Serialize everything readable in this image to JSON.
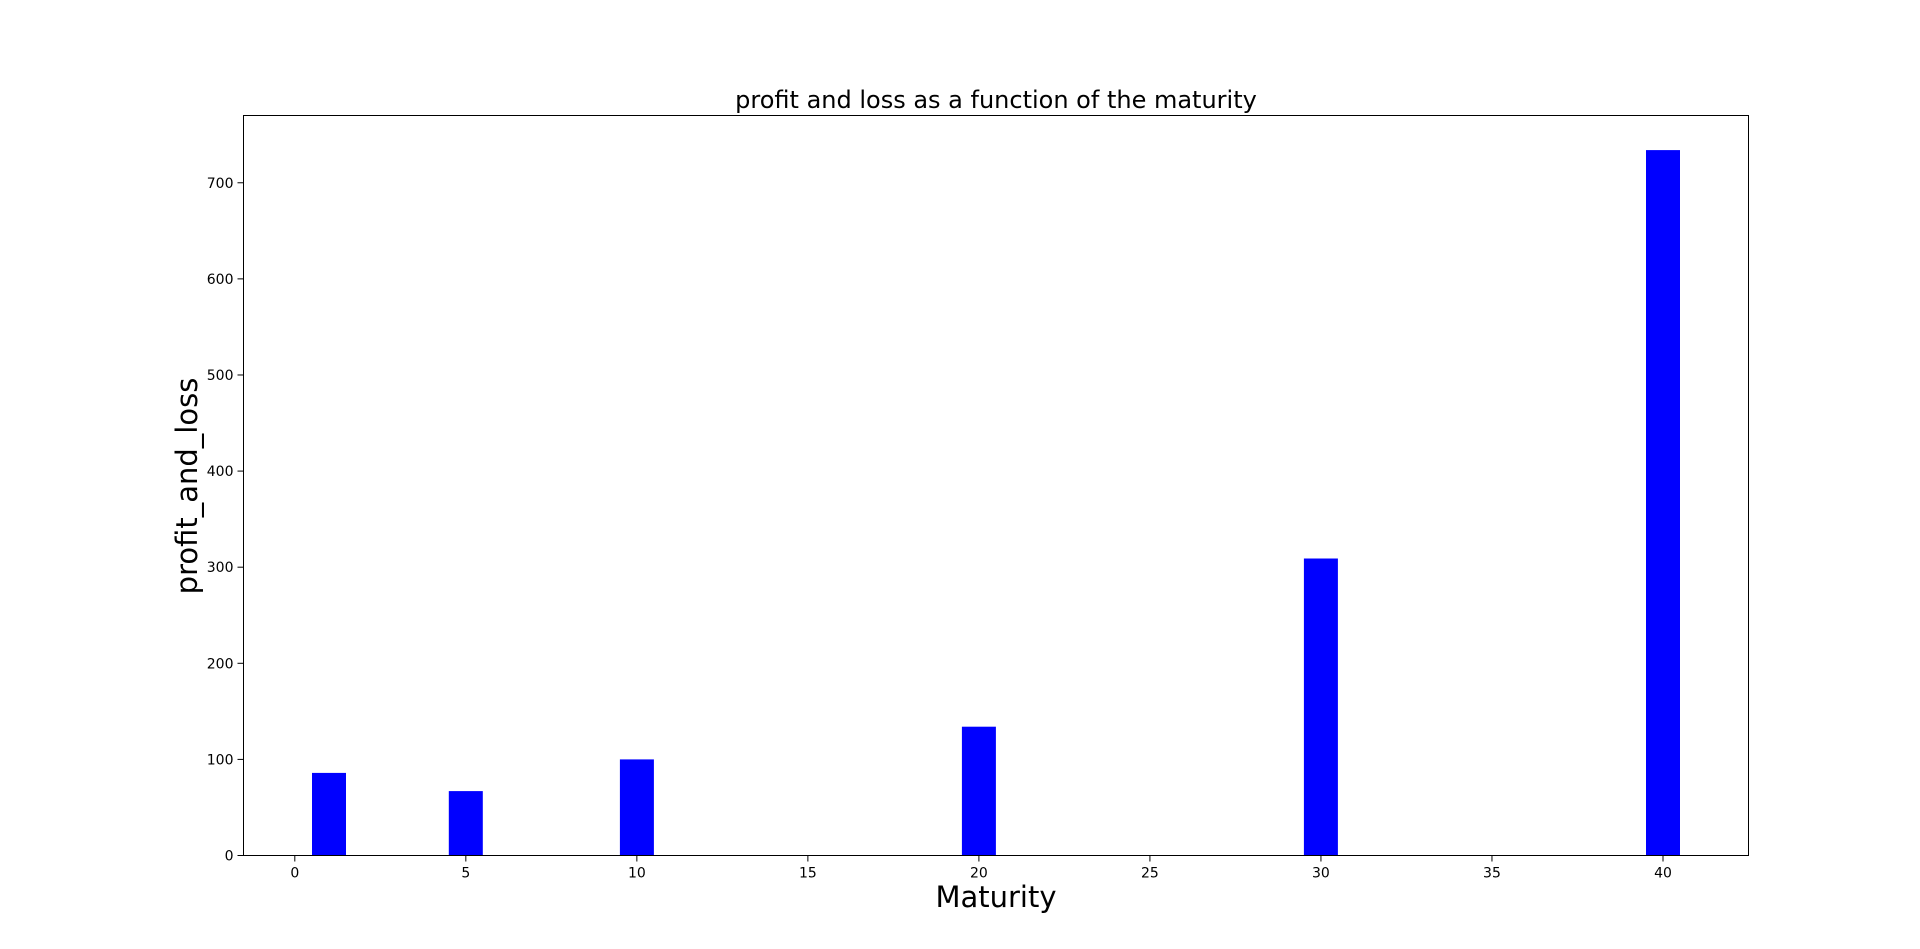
{
  "chart_data": {
    "type": "bar",
    "title": "profit and loss as a function of the maturity",
    "xlabel": "Maturity",
    "ylabel": "profit_and_loss",
    "x": [
      1,
      5,
      10,
      20,
      30,
      40
    ],
    "values": [
      86,
      67,
      100,
      134,
      309,
      734
    ],
    "bar_color": "#0000ff",
    "xlim": [
      -1.5,
      42.5
    ],
    "ylim": [
      0,
      770
    ],
    "xticks": [
      0,
      5,
      10,
      15,
      20,
      25,
      30,
      35,
      40
    ],
    "yticks": [
      0,
      100,
      200,
      300,
      400,
      500,
      600,
      700
    ],
    "grid": false,
    "legend": "none"
  }
}
